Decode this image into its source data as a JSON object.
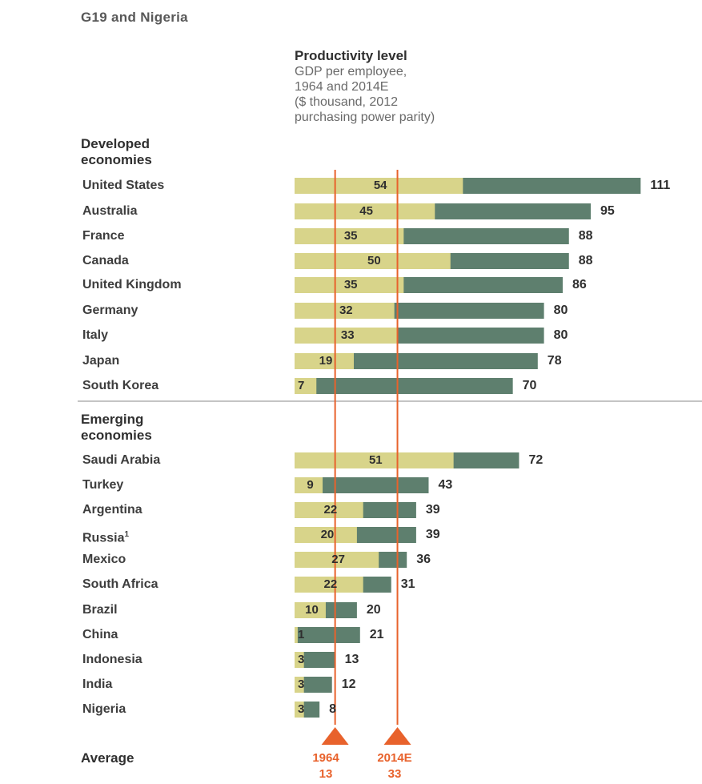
{
  "header": {
    "title": "G19 and Nigeria"
  },
  "chart_data": {
    "type": "bar",
    "title": "Productivity level",
    "subtitle": "GDP per employee,\n1964 and 2014E\n($ thousand, 2012\npurchasing power parity)",
    "groups": [
      {
        "label": "Developed\neconomies",
        "rows": [
          {
            "country": "United States",
            "v1964": 54,
            "v2014": 111
          },
          {
            "country": "Australia",
            "v1964": 45,
            "v2014": 95
          },
          {
            "country": "France",
            "v1964": 35,
            "v2014": 88
          },
          {
            "country": "Canada",
            "v1964": 50,
            "v2014": 88
          },
          {
            "country": "United Kingdom",
            "v1964": 35,
            "v2014": 86
          },
          {
            "country": "Germany",
            "v1964": 32,
            "v2014": 80
          },
          {
            "country": "Italy",
            "v1964": 33,
            "v2014": 80
          },
          {
            "country": "Japan",
            "v1964": 19,
            "v2014": 78
          },
          {
            "country": "South Korea",
            "v1964": 7,
            "v2014": 70
          }
        ]
      },
      {
        "label": "Emerging\neconomies",
        "rows": [
          {
            "country": "Saudi Arabia",
            "v1964": 51,
            "v2014": 72
          },
          {
            "country": "Turkey",
            "v1964": 9,
            "v2014": 43
          },
          {
            "country": "Argentina",
            "v1964": 22,
            "v2014": 39
          },
          {
            "country": "Russia",
            "sup": "1",
            "v1964": 20,
            "v2014": 39
          },
          {
            "country": "Mexico",
            "v1964": 27,
            "v2014": 36
          },
          {
            "country": "South Africa",
            "v1964": 22,
            "v2014": 31
          },
          {
            "country": "Brazil",
            "v1964": 10,
            "v2014": 20
          },
          {
            "country": "China",
            "v1964": 1,
            "v2014": 21
          },
          {
            "country": "Indonesia",
            "v1964": 3,
            "v2014": 13
          },
          {
            "country": "India",
            "v1964": 3,
            "v2014": 12
          },
          {
            "country": "Nigeria",
            "v1964": 3,
            "v2014": 8
          }
        ]
      }
    ],
    "series": [
      {
        "name": "1964",
        "color": "#d8d48a"
      },
      {
        "name": "2014E",
        "color": "#5e7f6e"
      }
    ],
    "average": {
      "label": "Average",
      "v1964": {
        "year": "1964",
        "value": "13"
      },
      "v2014": {
        "year": "2014E",
        "value": "33"
      },
      "color": "#e8622c"
    },
    "colors": {
      "bar_1964": "#d8d48a",
      "bar_2014": "#5e7f6e",
      "avg_line": "#e8622c",
      "separator": "#b0b0b0"
    }
  }
}
